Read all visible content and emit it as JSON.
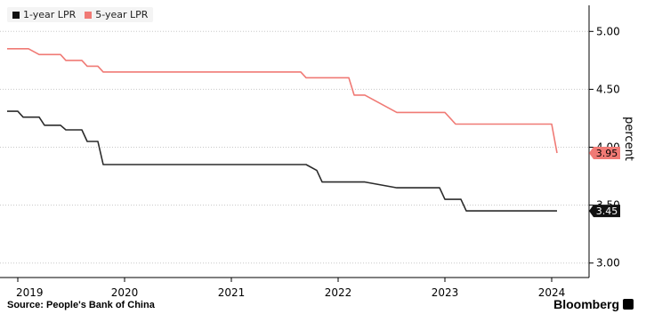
{
  "chart_data": {
    "type": "line",
    "title": "",
    "ylabel": "percent",
    "ylim": [
      2.875,
      5.225
    ],
    "yticks": [
      3.0,
      3.5,
      4.0,
      4.5,
      5.0
    ],
    "ytick_labels": [
      "3.00",
      "3.50",
      "4.00",
      "4.50",
      "5.00"
    ],
    "xlim": [
      2018.9,
      2024.25
    ],
    "xtick_positions": [
      2019.0,
      2020.0,
      2021.0,
      2022.0,
      2023.0,
      2024.0
    ],
    "xtick_labels": [
      "2019",
      "2020",
      "2021",
      "2022",
      "2023",
      "2024"
    ],
    "grid": "horizontal-dotted",
    "legend": "top-left",
    "series": [
      {
        "name": "1-year LPR",
        "color": "#2b2b2b",
        "end_label": "3.45",
        "x": [
          2018.9,
          2019.0,
          2019.05,
          2019.1,
          2019.2,
          2019.25,
          2019.4,
          2019.45,
          2019.6,
          2019.65,
          2019.75,
          2019.8,
          2021.65,
          2021.7,
          2021.8,
          2021.85,
          2022.1,
          2022.15,
          2022.2,
          2022.25,
          2022.55,
          2022.6,
          2022.95,
          2023.0,
          2023.1,
          2023.15,
          2023.2,
          2024.0,
          2024.05
        ],
        "y": [
          4.31,
          4.31,
          4.26,
          4.26,
          4.26,
          4.19,
          4.19,
          4.15,
          4.15,
          4.05,
          4.05,
          3.85,
          3.85,
          3.85,
          3.8,
          3.7,
          3.7,
          3.7,
          3.7,
          3.7,
          3.65,
          3.65,
          3.65,
          3.55,
          3.55,
          3.55,
          3.45,
          3.45,
          3.45
        ]
      },
      {
        "name": "5-year LPR",
        "color": "#f07a75",
        "end_label": "3.95",
        "x": [
          2018.9,
          2019.0,
          2019.05,
          2019.1,
          2019.2,
          2019.25,
          2019.4,
          2019.45,
          2019.6,
          2019.65,
          2019.75,
          2019.8,
          2021.65,
          2021.7,
          2021.8,
          2021.85,
          2022.1,
          2022.15,
          2022.2,
          2022.25,
          2022.55,
          2022.6,
          2022.95,
          2023.0,
          2023.1,
          2023.15,
          2023.2,
          2023.95,
          2024.0,
          2024.05
        ],
        "y": [
          4.85,
          4.85,
          4.85,
          4.85,
          4.8,
          4.8,
          4.8,
          4.75,
          4.75,
          4.7,
          4.7,
          4.65,
          4.65,
          4.6,
          4.6,
          4.6,
          4.6,
          4.45,
          4.45,
          4.45,
          4.3,
          4.3,
          4.3,
          4.3,
          4.2,
          4.2,
          4.2,
          4.2,
          4.2,
          3.95
        ]
      }
    ]
  },
  "footer": {
    "source": "Source: People's Bank of China",
    "brand": "Bloomberg"
  }
}
